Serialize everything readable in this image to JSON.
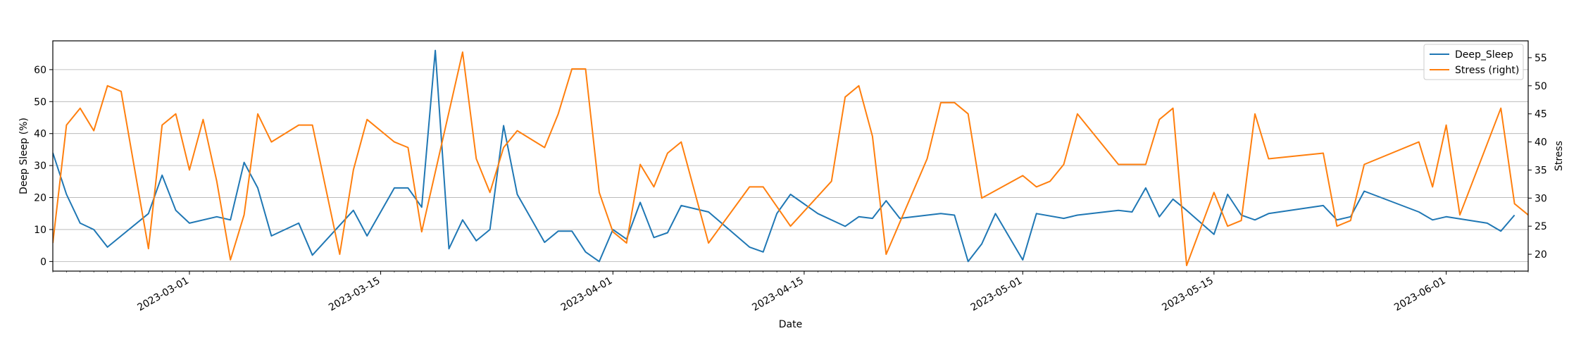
{
  "chart_data": {
    "type": "line",
    "title": "",
    "xlabel": "Date",
    "ylabel": "Deep Sleep (%)",
    "ylabel_right": "Stress",
    "xlim": [
      "2023-02-19",
      "2023-06-07"
    ],
    "ylim": [
      -3,
      69
    ],
    "ylim_right": [
      17,
      58
    ],
    "x_ticks": [
      "2023-03-01",
      "2023-03-15",
      "2023-04-01",
      "2023-04-15",
      "2023-05-01",
      "2023-05-15",
      "2023-06-01"
    ],
    "y_ticks": [
      0,
      10,
      20,
      30,
      40,
      50,
      60
    ],
    "y_ticks_right": [
      20,
      25,
      30,
      35,
      40,
      45,
      50,
      55
    ],
    "grid": "horizontal (left axis)",
    "legend_position": "top-right",
    "colors": {
      "deep_sleep": "#1f77b4",
      "stress": "#ff7f0e"
    },
    "series": [
      {
        "name": "Deep_Sleep",
        "axis": "left",
        "points": [
          [
            "2023-02-19",
            34
          ],
          [
            "2023-02-20",
            21
          ],
          [
            "2023-02-21",
            12
          ],
          [
            "2023-02-22",
            10
          ],
          [
            "2023-02-23",
            4.5
          ],
          [
            "2023-02-24",
            8
          ],
          [
            "2023-02-26",
            15
          ],
          [
            "2023-02-27",
            27
          ],
          [
            "2023-02-28",
            16
          ],
          [
            "2023-03-01",
            12
          ],
          [
            "2023-03-03",
            14
          ],
          [
            "2023-03-04",
            13
          ],
          [
            "2023-03-05",
            31
          ],
          [
            "2023-03-06",
            23
          ],
          [
            "2023-03-07",
            8
          ],
          [
            "2023-03-09",
            12
          ],
          [
            "2023-03-10",
            2
          ],
          [
            "2023-03-13",
            16
          ],
          [
            "2023-03-14",
            8
          ],
          [
            "2023-03-16",
            23
          ],
          [
            "2023-03-17",
            23
          ],
          [
            "2023-03-18",
            17
          ],
          [
            "2023-03-19",
            66
          ],
          [
            "2023-03-20",
            4
          ],
          [
            "2023-03-21",
            13
          ],
          [
            "2023-03-22",
            6.5
          ],
          [
            "2023-03-23",
            10
          ],
          [
            "2023-03-24",
            42.5
          ],
          [
            "2023-03-25",
            21
          ],
          [
            "2023-03-27",
            6
          ],
          [
            "2023-03-28",
            9.5
          ],
          [
            "2023-03-29",
            9.5
          ],
          [
            "2023-03-30",
            3
          ],
          [
            "2023-03-31",
            0
          ],
          [
            "2023-04-01",
            10
          ],
          [
            "2023-04-02",
            7
          ],
          [
            "2023-04-03",
            18.5
          ],
          [
            "2023-04-04",
            7.5
          ],
          [
            "2023-04-05",
            9
          ],
          [
            "2023-04-06",
            17.5
          ],
          [
            "2023-04-08",
            15.5
          ],
          [
            "2023-04-11",
            4.5
          ],
          [
            "2023-04-12",
            3
          ],
          [
            "2023-04-13",
            15
          ],
          [
            "2023-04-14",
            21
          ],
          [
            "2023-04-16",
            15
          ],
          [
            "2023-04-18",
            11
          ],
          [
            "2023-04-19",
            14
          ],
          [
            "2023-04-20",
            13.5
          ],
          [
            "2023-04-21",
            19
          ],
          [
            "2023-04-22",
            13.5
          ],
          [
            "2023-04-25",
            15
          ],
          [
            "2023-04-26",
            14.5
          ],
          [
            "2023-04-27",
            0
          ],
          [
            "2023-04-28",
            5.5
          ],
          [
            "2023-04-29",
            15
          ],
          [
            "2023-05-01",
            0.5
          ],
          [
            "2023-05-02",
            15
          ],
          [
            "2023-05-04",
            13.5
          ],
          [
            "2023-05-05",
            14.5
          ],
          [
            "2023-05-08",
            16
          ],
          [
            "2023-05-09",
            15.5
          ],
          [
            "2023-05-10",
            23
          ],
          [
            "2023-05-11",
            14
          ],
          [
            "2023-05-12",
            19.5
          ],
          [
            "2023-05-13",
            16
          ],
          [
            "2023-05-15",
            8.5
          ],
          [
            "2023-05-16",
            21
          ],
          [
            "2023-05-17",
            14.5
          ],
          [
            "2023-05-18",
            13
          ],
          [
            "2023-05-19",
            15
          ],
          [
            "2023-05-23",
            17.5
          ],
          [
            "2023-05-24",
            13
          ],
          [
            "2023-05-25",
            14
          ],
          [
            "2023-05-26",
            22
          ],
          [
            "2023-05-30",
            15.5
          ],
          [
            "2023-05-31",
            13
          ],
          [
            "2023-06-01",
            14
          ],
          [
            "2023-06-04",
            12
          ],
          [
            "2023-06-05",
            9.5
          ],
          [
            "2023-06-06",
            14.5
          ]
        ]
      },
      {
        "name": "Stress (right)",
        "axis": "right",
        "points": [
          [
            "2023-02-19",
            22
          ],
          [
            "2023-02-20",
            43
          ],
          [
            "2023-02-21",
            46
          ],
          [
            "2023-02-22",
            42
          ],
          [
            "2023-02-23",
            50
          ],
          [
            "2023-02-24",
            49
          ],
          [
            "2023-02-26",
            21
          ],
          [
            "2023-02-27",
            43
          ],
          [
            "2023-02-28",
            45
          ],
          [
            "2023-03-01",
            35
          ],
          [
            "2023-03-02",
            44
          ],
          [
            "2023-03-03",
            33
          ],
          [
            "2023-03-04",
            19
          ],
          [
            "2023-03-05",
            27
          ],
          [
            "2023-03-06",
            45
          ],
          [
            "2023-03-07",
            40
          ],
          [
            "2023-03-09",
            43
          ],
          [
            "2023-03-10",
            43
          ],
          [
            "2023-03-12",
            20
          ],
          [
            "2023-03-13",
            35
          ],
          [
            "2023-03-14",
            44
          ],
          [
            "2023-03-16",
            40
          ],
          [
            "2023-03-17",
            39
          ],
          [
            "2023-03-18",
            24
          ],
          [
            "2023-03-21",
            56
          ],
          [
            "2023-03-22",
            37
          ],
          [
            "2023-03-23",
            31
          ],
          [
            "2023-03-24",
            39
          ],
          [
            "2023-03-25",
            42
          ],
          [
            "2023-03-27",
            39
          ],
          [
            "2023-03-28",
            45
          ],
          [
            "2023-03-29",
            53
          ],
          [
            "2023-03-30",
            53
          ],
          [
            "2023-03-31",
            31
          ],
          [
            "2023-04-01",
            24
          ],
          [
            "2023-04-02",
            22
          ],
          [
            "2023-04-03",
            36
          ],
          [
            "2023-04-04",
            32
          ],
          [
            "2023-04-05",
            38
          ],
          [
            "2023-04-06",
            40
          ],
          [
            "2023-04-08",
            22
          ],
          [
            "2023-04-11",
            32
          ],
          [
            "2023-04-12",
            32
          ],
          [
            "2023-04-14",
            25
          ],
          [
            "2023-04-17",
            33
          ],
          [
            "2023-04-18",
            48
          ],
          [
            "2023-04-19",
            50
          ],
          [
            "2023-04-20",
            41
          ],
          [
            "2023-04-21",
            20
          ],
          [
            "2023-04-24",
            37
          ],
          [
            "2023-04-25",
            47
          ],
          [
            "2023-04-26",
            47
          ],
          [
            "2023-04-27",
            45
          ],
          [
            "2023-04-28",
            30
          ],
          [
            "2023-05-01",
            34
          ],
          [
            "2023-05-02",
            32
          ],
          [
            "2023-05-03",
            33
          ],
          [
            "2023-05-04",
            36
          ],
          [
            "2023-05-05",
            45
          ],
          [
            "2023-05-08",
            36
          ],
          [
            "2023-05-10",
            36
          ],
          [
            "2023-05-11",
            44
          ],
          [
            "2023-05-12",
            46
          ],
          [
            "2023-05-13",
            18
          ],
          [
            "2023-05-15",
            31
          ],
          [
            "2023-05-16",
            25
          ],
          [
            "2023-05-17",
            26
          ],
          [
            "2023-05-18",
            45
          ],
          [
            "2023-05-19",
            37
          ],
          [
            "2023-05-23",
            38
          ],
          [
            "2023-05-24",
            25
          ],
          [
            "2023-05-25",
            26
          ],
          [
            "2023-05-26",
            36
          ],
          [
            "2023-05-30",
            40
          ],
          [
            "2023-05-31",
            32
          ],
          [
            "2023-06-01",
            43
          ],
          [
            "2023-06-02",
            27
          ],
          [
            "2023-06-05",
            46
          ],
          [
            "2023-06-06",
            29
          ],
          [
            "2023-06-07",
            27
          ]
        ]
      }
    ]
  }
}
